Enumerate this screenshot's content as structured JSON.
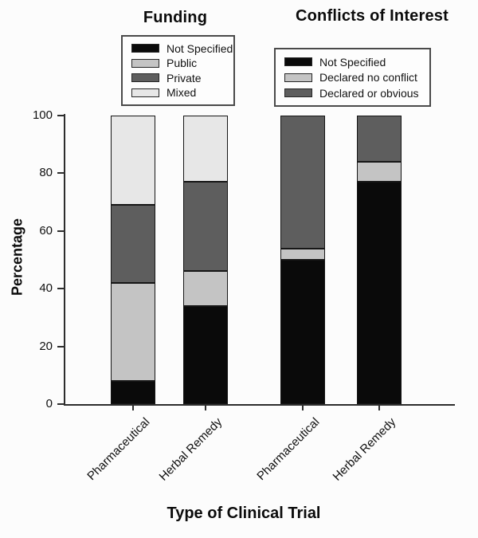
{
  "chart_data": {
    "type": "bar",
    "subtype": "stacked-percentage",
    "xlabel": "Type of Clinical Trial",
    "ylabel": "Percentage",
    "ylim": [
      0,
      100
    ],
    "yticks": [
      0,
      20,
      40,
      60,
      80,
      100
    ],
    "grid": false,
    "legend_position": "above-each-group",
    "groups": [
      {
        "title": "Funding",
        "categories": [
          "Pharmaceutical",
          "Herbal Remedy"
        ],
        "series": [
          {
            "name": "Not Specified",
            "color": "#0a0a0a",
            "values": [
              8,
              34
            ]
          },
          {
            "name": "Public",
            "color": "#c4c4c4",
            "values": [
              34,
              12
            ]
          },
          {
            "name": "Private",
            "color": "#5e5e5e",
            "values": [
              27,
              31
            ]
          },
          {
            "name": "Mixed",
            "color": "#e7e7e7",
            "values": [
              31,
              23
            ]
          }
        ]
      },
      {
        "title": "Conflicts of Interest",
        "categories": [
          "Pharmaceutical",
          "Herbal Remedy"
        ],
        "series": [
          {
            "name": "Not Specified",
            "color": "#0a0a0a",
            "values": [
              50,
              77
            ]
          },
          {
            "name": "Declared no conflict",
            "color": "#c4c4c4",
            "values": [
              4,
              7
            ]
          },
          {
            "name": "Declared or obvious",
            "color": "#5e5e5e",
            "values": [
              46,
              16
            ]
          }
        ]
      }
    ]
  }
}
